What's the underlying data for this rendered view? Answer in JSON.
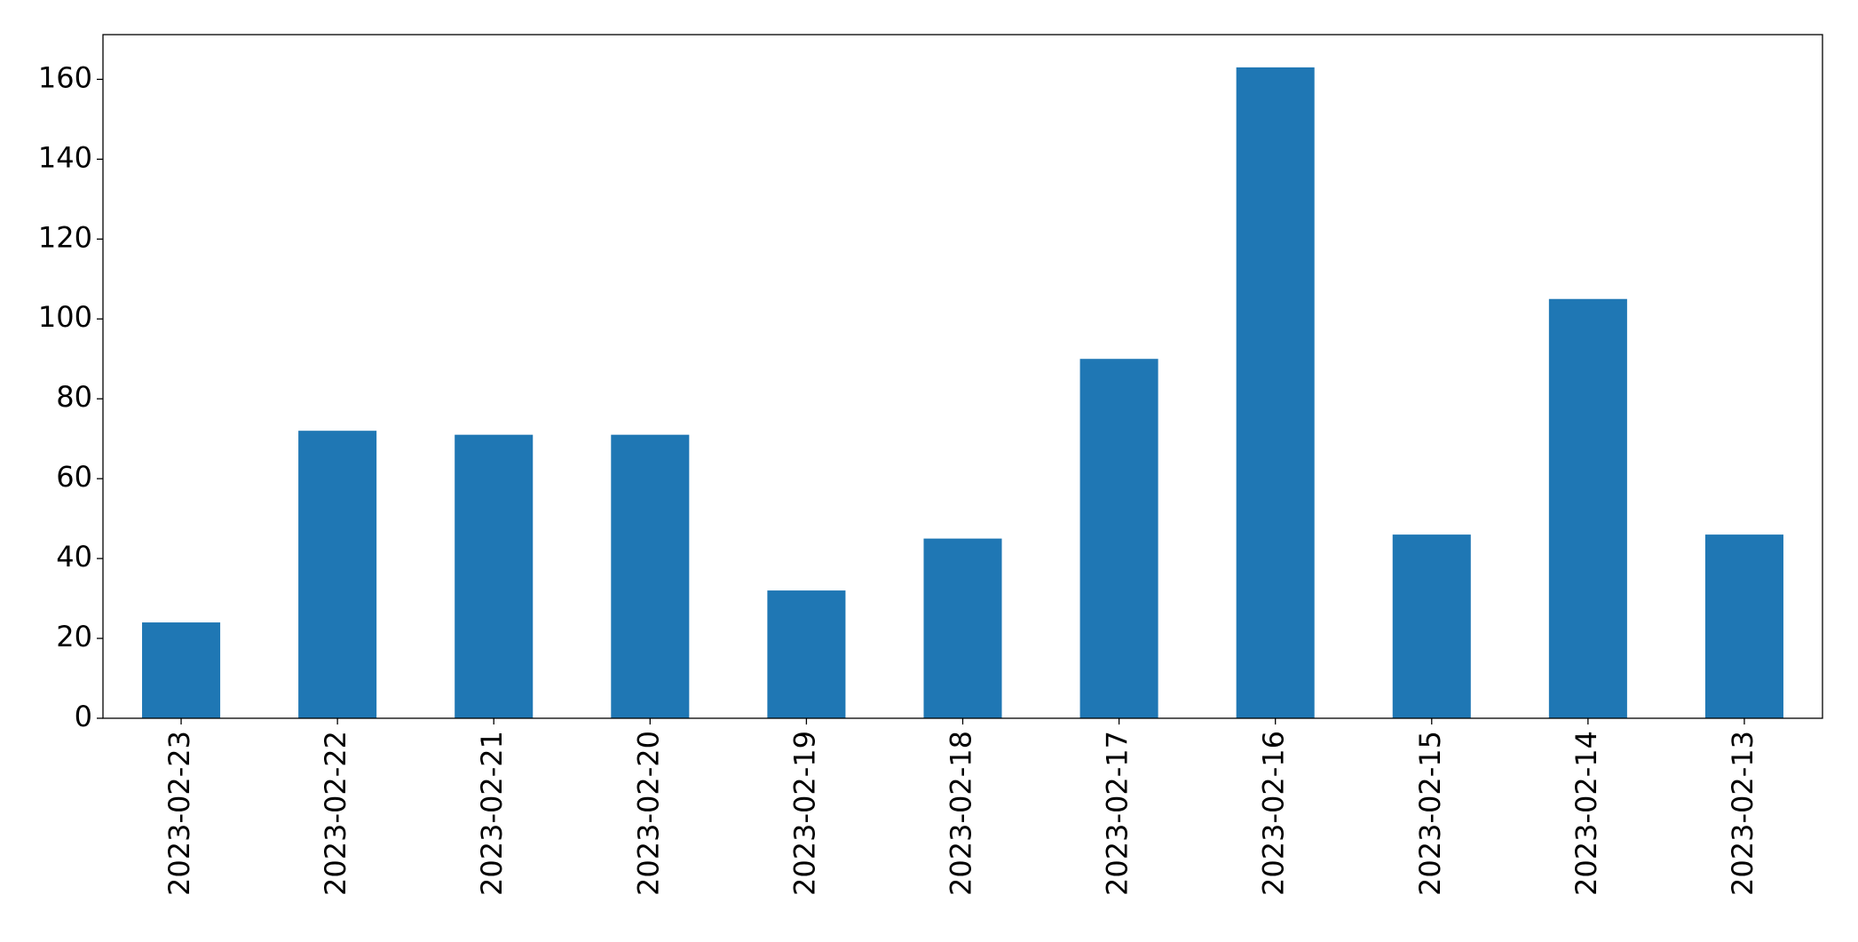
{
  "chart_data": {
    "type": "bar",
    "categories": [
      "2023-02-23",
      "2023-02-22",
      "2023-02-21",
      "2023-02-20",
      "2023-02-19",
      "2023-02-18",
      "2023-02-17",
      "2023-02-16",
      "2023-02-15",
      "2023-02-14",
      "2023-02-13"
    ],
    "values": [
      24,
      72,
      71,
      71,
      32,
      45,
      90,
      163,
      46,
      105,
      46
    ],
    "color": "#1f77b4",
    "ylim": [
      0,
      171.2
    ],
    "yticks": [
      0,
      20,
      40,
      60,
      80,
      100,
      120,
      140,
      160
    ],
    "grid": false
  }
}
